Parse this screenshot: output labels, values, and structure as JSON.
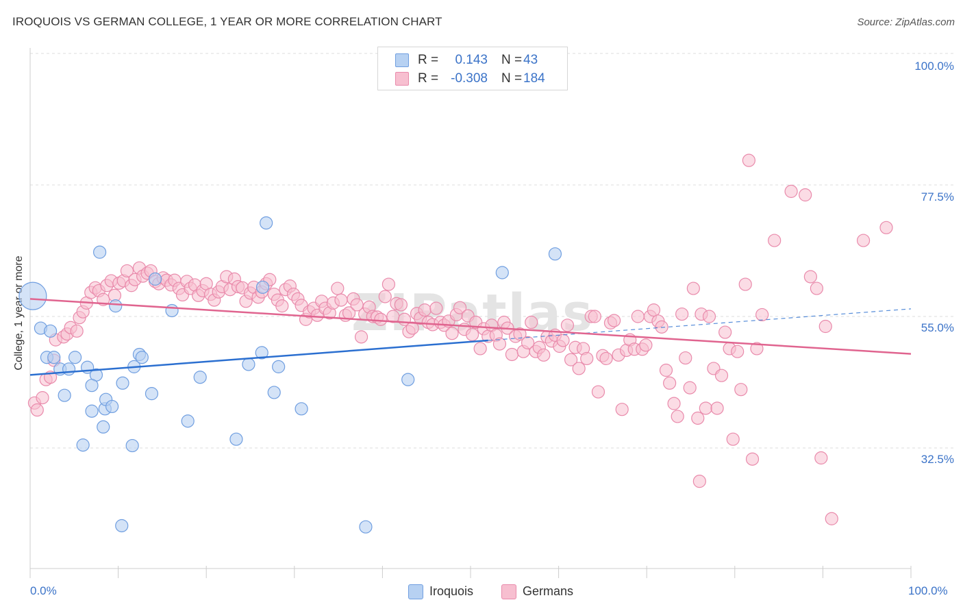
{
  "title": "IROQUOIS VS GERMAN COLLEGE, 1 YEAR OR MORE CORRELATION CHART",
  "source": "Source: ZipAtlas.com",
  "watermark": "ZIPatlas",
  "colors": {
    "iroquois_fill": "#b7d1f2",
    "iroquois_stroke": "#6f9ee0",
    "iroquois_line": "#2b6fd0",
    "germans_fill": "#f7bfd0",
    "germans_stroke": "#e98aab",
    "germans_line": "#e0648f",
    "tick_text": "#3b73c8",
    "grid": "#dddddd"
  },
  "legend": {
    "rows": [
      {
        "r_label": "R =",
        "r_value": "0.143",
        "n_label": "N =",
        "n_value": "43"
      },
      {
        "r_label": "R =",
        "r_value": "-0.308",
        "n_label": "N =",
        "n_value": "184"
      }
    ]
  },
  "bottom_legend": {
    "iroquois": "Iroquois",
    "germans": "Germans"
  },
  "chart_data": {
    "type": "scatter",
    "title": "IROQUOIS VS GERMAN COLLEGE, 1 YEAR OR MORE CORRELATION CHART",
    "xlabel": "",
    "ylabel": "College, 1 year or more",
    "xlim": [
      0,
      100
    ],
    "ylim": [
      10,
      102
    ],
    "x_tick_labels": [
      "0.0%",
      "100.0%"
    ],
    "y_ticks": [
      100,
      77.5,
      55,
      32.5
    ],
    "y_tick_labels": [
      "100.0%",
      "77.5%",
      "55.0%",
      "32.5%"
    ],
    "grid": true,
    "legend_position": "top-center",
    "series": [
      {
        "name": "Iroquois",
        "r": 0.143,
        "n": 43,
        "trend": {
          "x": [
            0,
            52
          ],
          "y": [
            45.0,
            50.9
          ]
        },
        "trend_extension": {
          "x": [
            52,
            100
          ],
          "y": [
            50.9,
            56.3
          ]
        },
        "points": [
          [
            0.3,
            58.5
          ],
          [
            1.2,
            53.0
          ],
          [
            2.3,
            52.5
          ],
          [
            1.9,
            48.0
          ],
          [
            2.7,
            48.0
          ],
          [
            3.4,
            46.0
          ],
          [
            3.9,
            41.5
          ],
          [
            5.1,
            48.0
          ],
          [
            4.4,
            46.0
          ],
          [
            6.5,
            46.3
          ],
          [
            7.0,
            38.8
          ],
          [
            7.5,
            45.0
          ],
          [
            7.0,
            43.2
          ],
          [
            8.3,
            36.1
          ],
          [
            8.5,
            39.2
          ],
          [
            8.6,
            40.8
          ],
          [
            9.3,
            39.6
          ],
          [
            9.7,
            56.8
          ],
          [
            10.5,
            43.6
          ],
          [
            11.6,
            32.9
          ],
          [
            11.8,
            46.4
          ],
          [
            12.4,
            48.5
          ],
          [
            12.7,
            48.0
          ],
          [
            13.8,
            41.8
          ],
          [
            14.2,
            61.4
          ],
          [
            16.1,
            56.0
          ],
          [
            17.9,
            37.1
          ],
          [
            19.3,
            44.6
          ],
          [
            23.4,
            34.0
          ],
          [
            24.8,
            46.8
          ],
          [
            26.3,
            48.8
          ],
          [
            26.4,
            60.0
          ],
          [
            26.8,
            71.0
          ],
          [
            27.7,
            42.0
          ],
          [
            28.2,
            46.4
          ],
          [
            30.8,
            39.2
          ],
          [
            38.1,
            19.0
          ],
          [
            42.9,
            44.2
          ],
          [
            53.6,
            62.5
          ],
          [
            59.6,
            65.7
          ],
          [
            10.4,
            19.2
          ],
          [
            6.0,
            33.0
          ],
          [
            7.9,
            66.0
          ]
        ]
      },
      {
        "name": "Germans",
        "r": -0.308,
        "n": 184,
        "trend": {
          "x": [
            0,
            100
          ],
          "y": [
            58.0,
            48.6
          ]
        },
        "points": [
          [
            0.5,
            40.2
          ],
          [
            0.8,
            39.0
          ],
          [
            1.4,
            41.1
          ],
          [
            1.8,
            44.2
          ],
          [
            2.3,
            44.6
          ],
          [
            2.7,
            47.5
          ],
          [
            2.9,
            51.0
          ],
          [
            3.8,
            51.5
          ],
          [
            4.2,
            52.0
          ],
          [
            4.6,
            53.1
          ],
          [
            5.3,
            52.5
          ],
          [
            5.6,
            54.8
          ],
          [
            6.0,
            55.8
          ],
          [
            6.4,
            57.3
          ],
          [
            6.9,
            59.1
          ],
          [
            7.4,
            59.9
          ],
          [
            7.8,
            59.4
          ],
          [
            8.3,
            57.9
          ],
          [
            8.7,
            60.3
          ],
          [
            9.2,
            61.1
          ],
          [
            9.6,
            58.6
          ],
          [
            10.1,
            60.7
          ],
          [
            10.6,
            61.1
          ],
          [
            11.0,
            62.8
          ],
          [
            11.5,
            60.3
          ],
          [
            11.9,
            61.3
          ],
          [
            12.4,
            63.3
          ],
          [
            12.8,
            61.9
          ],
          [
            13.3,
            62.4
          ],
          [
            13.7,
            62.8
          ],
          [
            14.2,
            61.0
          ],
          [
            14.6,
            60.6
          ],
          [
            15.1,
            61.6
          ],
          [
            15.5,
            61.2
          ],
          [
            16.0,
            60.4
          ],
          [
            16.4,
            61.2
          ],
          [
            16.9,
            59.8
          ],
          [
            17.3,
            58.7
          ],
          [
            17.8,
            61.0
          ],
          [
            18.2,
            59.8
          ],
          [
            18.7,
            60.4
          ],
          [
            19.1,
            58.6
          ],
          [
            19.6,
            59.4
          ],
          [
            20.0,
            60.6
          ],
          [
            20.5,
            58.8
          ],
          [
            20.9,
            57.8
          ],
          [
            21.4,
            59.2
          ],
          [
            21.8,
            60.1
          ],
          [
            22.3,
            61.8
          ],
          [
            22.7,
            59.6
          ],
          [
            23.2,
            61.4
          ],
          [
            23.6,
            60.1
          ],
          [
            24.1,
            59.9
          ],
          [
            24.5,
            57.6
          ],
          [
            25.0,
            59.0
          ],
          [
            25.4,
            60.0
          ],
          [
            25.9,
            58.3
          ],
          [
            26.3,
            59.2
          ],
          [
            26.8,
            60.6
          ],
          [
            27.2,
            61.3
          ],
          [
            27.7,
            58.8
          ],
          [
            28.1,
            57.8
          ],
          [
            28.6,
            56.8
          ],
          [
            29.0,
            59.6
          ],
          [
            29.5,
            60.2
          ],
          [
            29.9,
            58.8
          ],
          [
            30.4,
            58.0
          ],
          [
            30.8,
            56.9
          ],
          [
            31.3,
            54.5
          ],
          [
            31.7,
            55.8
          ],
          [
            32.2,
            56.4
          ],
          [
            32.6,
            55.2
          ],
          [
            33.1,
            57.6
          ],
          [
            33.5,
            56.4
          ],
          [
            34.0,
            55.6
          ],
          [
            34.4,
            57.3
          ],
          [
            34.9,
            59.8
          ],
          [
            35.3,
            57.8
          ],
          [
            35.8,
            55.2
          ],
          [
            36.2,
            55.6
          ],
          [
            36.7,
            58.0
          ],
          [
            37.1,
            57.0
          ],
          [
            37.6,
            51.5
          ],
          [
            38.0,
            55.4
          ],
          [
            38.5,
            56.6
          ],
          [
            38.9,
            55.0
          ],
          [
            39.4,
            54.9
          ],
          [
            39.8,
            54.5
          ],
          [
            40.3,
            58.4
          ],
          [
            40.7,
            60.5
          ],
          [
            41.2,
            55.0
          ],
          [
            41.6,
            57.2
          ],
          [
            42.1,
            57.0
          ],
          [
            42.5,
            54.5
          ],
          [
            43.0,
            52.4
          ],
          [
            43.4,
            53.0
          ],
          [
            43.9,
            55.5
          ],
          [
            44.3,
            54.7
          ],
          [
            44.8,
            56.1
          ],
          [
            45.2,
            54.0
          ],
          [
            45.7,
            53.6
          ],
          [
            46.1,
            56.4
          ],
          [
            46.6,
            54.0
          ],
          [
            47.0,
            53.5
          ],
          [
            47.5,
            54.2
          ],
          [
            47.9,
            52.1
          ],
          [
            48.4,
            55.3
          ],
          [
            48.8,
            56.5
          ],
          [
            49.3,
            52.8
          ],
          [
            49.7,
            55.1
          ],
          [
            50.2,
            51.9
          ],
          [
            50.6,
            54.0
          ],
          [
            51.1,
            49.5
          ],
          [
            51.5,
            52.9
          ],
          [
            52.0,
            51.6
          ],
          [
            52.4,
            53.5
          ],
          [
            52.9,
            51.8
          ],
          [
            53.3,
            50.3
          ],
          [
            53.8,
            54.0
          ],
          [
            54.2,
            53.0
          ],
          [
            54.7,
            48.5
          ],
          [
            55.1,
            51.6
          ],
          [
            55.6,
            52.0
          ],
          [
            56.0,
            49.0
          ],
          [
            56.5,
            50.5
          ],
          [
            56.9,
            54.0
          ],
          [
            57.4,
            49.0
          ],
          [
            57.8,
            49.7
          ],
          [
            58.3,
            48.4
          ],
          [
            58.7,
            51.5
          ],
          [
            59.2,
            50.8
          ],
          [
            59.6,
            51.8
          ],
          [
            60.1,
            49.9
          ],
          [
            60.5,
            50.9
          ],
          [
            61.0,
            53.5
          ],
          [
            61.4,
            47.6
          ],
          [
            61.9,
            49.7
          ],
          [
            62.3,
            46.1
          ],
          [
            62.8,
            49.5
          ],
          [
            63.2,
            47.8
          ],
          [
            63.7,
            55.0
          ],
          [
            64.1,
            55.0
          ],
          [
            64.5,
            42.1
          ],
          [
            65.0,
            48.3
          ],
          [
            65.4,
            47.8
          ],
          [
            65.9,
            53.9
          ],
          [
            66.3,
            54.3
          ],
          [
            66.8,
            48.4
          ],
          [
            67.2,
            39.1
          ],
          [
            67.7,
            49.2
          ],
          [
            68.1,
            51.0
          ],
          [
            68.6,
            49.4
          ],
          [
            69.0,
            55.0
          ],
          [
            69.5,
            49.4
          ],
          [
            69.9,
            50.1
          ],
          [
            70.4,
            55.0
          ],
          [
            70.8,
            56.1
          ],
          [
            71.3,
            54.2
          ],
          [
            71.7,
            53.2
          ],
          [
            72.2,
            45.8
          ],
          [
            72.6,
            43.6
          ],
          [
            73.1,
            40.1
          ],
          [
            73.5,
            37.9
          ],
          [
            74.0,
            55.4
          ],
          [
            74.4,
            47.9
          ],
          [
            74.9,
            42.8
          ],
          [
            75.3,
            59.8
          ],
          [
            75.8,
            37.6
          ],
          [
            76.2,
            55.4
          ],
          [
            76.7,
            39.3
          ],
          [
            77.1,
            55.0
          ],
          [
            77.6,
            46.1
          ],
          [
            78.0,
            39.3
          ],
          [
            78.5,
            44.9
          ],
          [
            78.9,
            52.3
          ],
          [
            79.4,
            49.5
          ],
          [
            79.8,
            34.0
          ],
          [
            80.3,
            49.0
          ],
          [
            80.7,
            42.5
          ],
          [
            81.2,
            60.5
          ],
          [
            81.6,
            81.7
          ],
          [
            82.0,
            30.6
          ],
          [
            82.5,
            49.5
          ],
          [
            83.1,
            55.3
          ],
          [
            84.5,
            68.0
          ],
          [
            86.4,
            76.4
          ],
          [
            88.0,
            75.8
          ],
          [
            88.6,
            61.8
          ],
          [
            89.3,
            59.8
          ],
          [
            89.8,
            30.8
          ],
          [
            90.3,
            53.3
          ],
          [
            94.6,
            68.0
          ],
          [
            97.2,
            70.2
          ],
          [
            91.0,
            20.4
          ],
          [
            76.0,
            26.8
          ]
        ]
      }
    ]
  }
}
